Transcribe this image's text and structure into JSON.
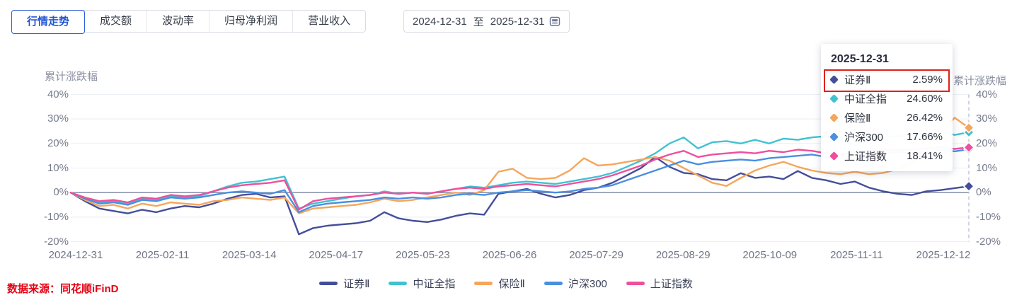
{
  "header": {
    "tabs": [
      {
        "label": "行情走势",
        "active": true
      },
      {
        "label": "成交额",
        "active": false
      },
      {
        "label": "波动率",
        "active": false
      },
      {
        "label": "归母净利润",
        "active": false
      },
      {
        "label": "营业收入",
        "active": false
      }
    ],
    "date_range": {
      "start": "2024-12-31",
      "separator": "至",
      "end": "2025-12-31",
      "calendar_icon": "calendar-icon"
    }
  },
  "chart_data": {
    "type": "line",
    "y_axis_title_left": "累计涨跌幅",
    "y_axis_title_right": "累计涨跌幅",
    "ylim": [
      -20,
      40
    ],
    "y_tick_values": [
      40,
      30,
      20,
      10,
      0,
      -10,
      -20
    ],
    "y_tick_labels": [
      "40%",
      "30%",
      "20%",
      "10%",
      "0%",
      "-10%",
      "-20%"
    ],
    "grid": true,
    "legend_position": "bottom",
    "x_range": [
      "2024-12-31",
      "2025-12-31"
    ],
    "x_tick_labels": [
      "2024-12-31",
      "2025-02-11",
      "2025-03-14",
      "2025-04-17",
      "2025-05-23",
      "2025-06-26",
      "2025-07-29",
      "2025-08-29",
      "2025-10-09",
      "2025-11-11",
      "2025-12-12"
    ],
    "series": [
      {
        "name": "证券Ⅱ",
        "color": "#444e9b",
        "end_value": 2.59,
        "values": [
          0,
          -3.5,
          -6.5,
          -7.5,
          -8.5,
          -7,
          -8,
          -6.5,
          -5.5,
          -6,
          -4.5,
          -2.5,
          -1,
          -0.5,
          -2,
          -1.5,
          -17,
          -14.5,
          -13.5,
          -13,
          -12.5,
          -11.5,
          -8,
          -10.5,
          -11.5,
          -12,
          -11,
          -9.5,
          -8.5,
          -9,
          -0.5,
          0.5,
          1.5,
          -0.5,
          -2,
          -1,
          1,
          2,
          4,
          7,
          10,
          14.5,
          10.5,
          8,
          7.5,
          5.5,
          5,
          7.9,
          6,
          6.5,
          5.5,
          8.8,
          6,
          5,
          3.5,
          4.5,
          2,
          0.5,
          -0.5,
          -1,
          0.5,
          1,
          1.8,
          2.59
        ]
      },
      {
        "name": "中证全指",
        "color": "#40c2d2",
        "end_value": 24.6,
        "values": [
          0,
          -2.5,
          -4,
          -3.5,
          -4.5,
          -2.5,
          -3,
          -1.5,
          -2,
          -1.5,
          0.5,
          2.5,
          4,
          4.5,
          5.5,
          6.5,
          -6.5,
          -4.5,
          -3.5,
          -2.5,
          -1.5,
          -1,
          0.5,
          -0.5,
          0,
          -0.5,
          0.5,
          1.5,
          2.5,
          2,
          3,
          4,
          4.5,
          4,
          3.5,
          4.5,
          5.5,
          6.5,
          8,
          10.5,
          13,
          16,
          20,
          22.5,
          18,
          20.5,
          21,
          20,
          21.5,
          20,
          22,
          21.5,
          22.5,
          23,
          21.5,
          19.5,
          21.5,
          22.5,
          23,
          23.5,
          24,
          25.2,
          23.5,
          24.6
        ]
      },
      {
        "name": "保险Ⅱ",
        "color": "#f5a65c",
        "end_value": 26.42,
        "values": [
          0,
          -3,
          -5.5,
          -5,
          -6.5,
          -4.5,
          -5.5,
          -4,
          -4.5,
          -5,
          -3.5,
          -3,
          -2,
          -2.5,
          -3,
          -2,
          -8.5,
          -6.5,
          -6,
          -5.5,
          -5,
          -4,
          -2.5,
          -3.5,
          -3,
          -2,
          -1,
          0,
          -1,
          1,
          8.5,
          9.7,
          6,
          5.5,
          6,
          9,
          14,
          11,
          11.5,
          12.5,
          13.5,
          14.5,
          13,
          10,
          7,
          4,
          2.7,
          6,
          9,
          11,
          12.5,
          10.5,
          9,
          8,
          7.5,
          8.5,
          7.5,
          8,
          9.5,
          12,
          17,
          24,
          30.5,
          26.42
        ]
      },
      {
        "name": "沪深300",
        "color": "#4a8fe0",
        "end_value": 17.66,
        "values": [
          0,
          -2.5,
          -4.5,
          -4,
          -5,
          -3,
          -3.5,
          -2,
          -2.5,
          -2,
          -1,
          0,
          0.5,
          0,
          -0.5,
          1,
          -8,
          -5.5,
          -4.5,
          -4,
          -3.5,
          -3,
          -2,
          -2.5,
          -2,
          -2.5,
          -2,
          -1,
          -0.5,
          -1,
          0,
          0.5,
          1,
          0.5,
          0,
          0.5,
          1.5,
          2,
          3,
          5,
          7,
          9,
          11,
          13,
          11.5,
          12.5,
          13,
          13.5,
          13,
          14,
          14.5,
          15,
          15.5,
          14.5,
          14,
          15,
          15.5,
          16,
          16.5,
          16,
          16.5,
          17.5,
          16.8,
          17.66
        ]
      },
      {
        "name": "上证指数",
        "color": "#ef4f9e",
        "end_value": 18.41,
        "values": [
          0,
          -2,
          -3.5,
          -3,
          -4,
          -2,
          -2.5,
          -1,
          -1.5,
          -1,
          0.5,
          2,
          3,
          3.5,
          4,
          5,
          -7,
          -3.5,
          -2.5,
          -2,
          -1.5,
          -1,
          0,
          -0.5,
          0,
          -0.5,
          0.5,
          1.5,
          2,
          1.5,
          2.5,
          3,
          3.5,
          3,
          2.5,
          3.5,
          4.5,
          5.5,
          7,
          9,
          11,
          13.5,
          15.5,
          17,
          14.5,
          15.5,
          16,
          16.5,
          16,
          17,
          16.5,
          17.5,
          17,
          16,
          15.5,
          16.5,
          17,
          17.5,
          17.2,
          17.5,
          18,
          18.5,
          17.8,
          18.41
        ]
      }
    ]
  },
  "tooltip": {
    "title": "2025-12-31",
    "highlight_color": "#e0211a",
    "rows": [
      {
        "name": "证券Ⅱ",
        "value": "2.59%",
        "color": "#444e9b",
        "highlighted": true
      },
      {
        "name": "中证全指",
        "value": "24.60%",
        "color": "#40c2d2",
        "highlighted": false
      },
      {
        "name": "保险Ⅱ",
        "value": "26.42%",
        "color": "#f5a65c",
        "highlighted": false
      },
      {
        "name": "沪深300",
        "value": "17.66%",
        "color": "#4a8fe0",
        "highlighted": false
      },
      {
        "name": "上证指数",
        "value": "18.41%",
        "color": "#ef4f9e",
        "highlighted": false
      }
    ]
  },
  "footer": {
    "source": "数据来源：同花顺iFinD",
    "source_color": "#e60012"
  }
}
